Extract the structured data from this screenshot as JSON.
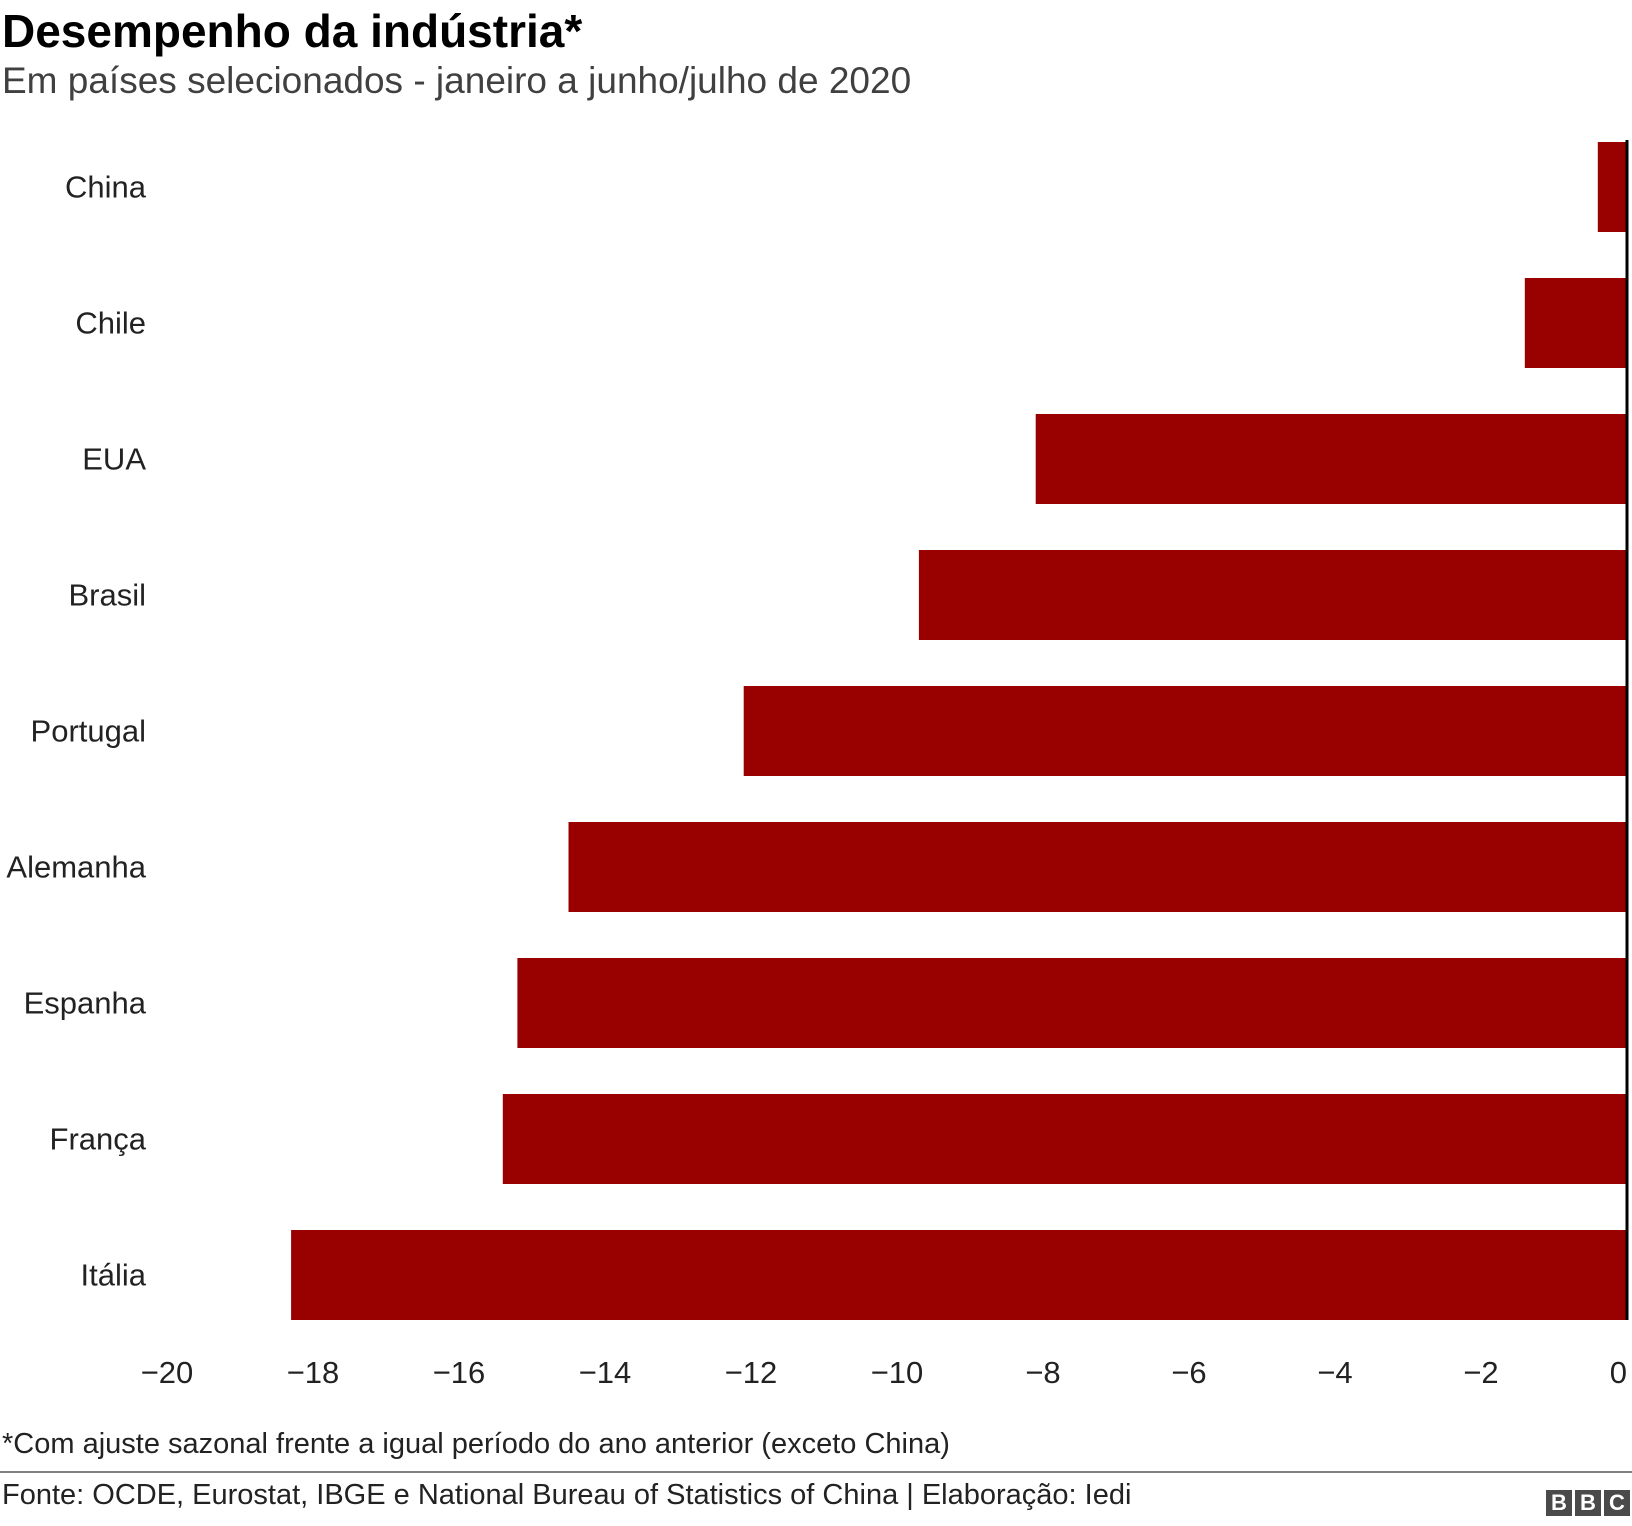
{
  "title": "Desempenho da indústria*",
  "subtitle": "Em países selecionados - janeiro a junho/julho de 2020",
  "footnote": "*Com ajuste sazonal frente a igual período do ano anterior (exceto China)",
  "source": "Fonte: OCDE, Eurostat, IBGE e National Bureau of Statistics of China | Elaboração: Iedi",
  "logo": [
    "B",
    "B",
    "C"
  ],
  "colors": {
    "bar": "#990000",
    "axis": "#000000",
    "text": "#222222"
  },
  "chart_data": {
    "type": "bar",
    "orientation": "horizontal",
    "categories": [
      "China",
      "Chile",
      "EUA",
      "Brasil",
      "Portugal",
      "Alemanha",
      "Espanha",
      "França",
      "Itália"
    ],
    "values": [
      -0.4,
      -1.4,
      -8.1,
      -9.7,
      -12.1,
      -14.5,
      -15.2,
      -15.4,
      -18.3
    ],
    "xlim": [
      -20,
      0
    ],
    "xticks": [
      -20,
      -18,
      -16,
      -14,
      -12,
      -10,
      -8,
      -6,
      -4,
      -2,
      0
    ],
    "tick_labels": [
      "−20",
      "−18",
      "−16",
      "−14",
      "−12",
      "−10",
      "−8",
      "−6",
      "−4",
      "−2",
      "0"
    ],
    "grid": false,
    "legend": "none"
  }
}
